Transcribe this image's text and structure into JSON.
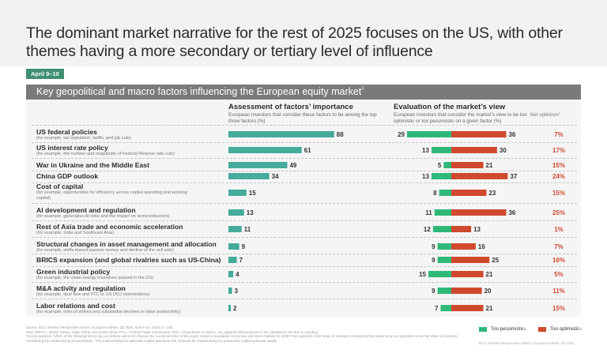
{
  "title": "The dominant market narrative for the rest of 2025 focuses on the US, with other themes having a more secondary or tertiary level of influence",
  "date_badge": "April 9–10",
  "panel_title": "Key geopolitical and macro factors influencing the European equity market",
  "panel_title_sup": "1",
  "columns": {
    "importance": {
      "heading": "Assessment of factors’ importance",
      "subheading": "European investors that consider these factors to be among the top three factors (%)"
    },
    "evaluation": {
      "heading": "Evaluation of the market’s view",
      "subheading": "European investors that consider the market’s view to be too optimistic or too pessimistic on a given factor (%)"
    },
    "net": {
      "heading": "Net optimism",
      "sup": "2"
    }
  },
  "colors": {
    "importance_bar": "#45ab9b",
    "too_pessimistic": "#2fb978",
    "too_optimistic": "#d0492f",
    "net_text": "#d0492f"
  },
  "chart_data": {
    "type": "bar",
    "title": "Key geopolitical and macro factors influencing the European equity market",
    "categories": [
      "US federal policies",
      "US interest rate policy",
      "War in Ukraine and the Middle East",
      "China GDP outlook",
      "Cost of capital",
      "AI development and regulation",
      "Rest of Asia trade and economic acceleration",
      "Structural changes in asset management and allocation",
      "BRICS expansion (and global rivalries such as US-China)",
      "Green industrial policy",
      "M&A activity and regulation",
      "Labor relations and cost"
    ],
    "category_descriptions": [
      "(for example, tax legislation, tariffs, and job cuts)",
      "(for example, the number and magnitude of Federal Reserve rate cuts)",
      "",
      "",
      "(for example, opportunities for efficiency across capital spending and working capital)",
      "(for example, generative AI risks and the impact on semiconductors)",
      "(for example, India and Southeast Asia)",
      "(for example, shifts toward passive money and decline of the sell side)",
      "",
      "(for example, the clean energy incentives passed in the US)",
      "(for example, deal flow and FTC or US DOJ interventions)",
      "(for example, risks of strikes and substantial declines in labor productivity)"
    ],
    "series": [
      {
        "name": "Top-three importance (%)",
        "values": [
          88,
          61,
          49,
          34,
          15,
          13,
          11,
          9,
          7,
          4,
          3,
          2
        ]
      },
      {
        "name": "Too pessimistic",
        "values": [
          29,
          13,
          5,
          13,
          8,
          11,
          12,
          9,
          9,
          15,
          9,
          7
        ]
      },
      {
        "name": "Too optimistic",
        "values": [
          36,
          30,
          21,
          37,
          23,
          36,
          13,
          16,
          25,
          21,
          20,
          21
        ]
      },
      {
        "name": "Net optimism",
        "values": [
          "7%",
          "17%",
          "15%",
          "24%",
          "15%",
          "25%",
          "1%",
          "7%",
          "16%",
          "5%",
          "11%",
          "15%"
        ]
      }
    ],
    "xlabel": "",
    "ylabel": "",
    "legend": [
      "Too pessimistic",
      "Too optimistic"
    ],
    "legend_position": "bottom-right"
  },
  "legend": {
    "pessimistic": "Too pessimistic",
    "optimistic": "Too optimistic",
    "sup": "3"
  },
  "footnotes": [
    "Source: BCG Investor Perspectives Series, European Edition, Q2 2025, April 9–10, 2025, n = 154.",
    "Note: BRICS = Brazil, Russia, India, China, and South Africa; FTC = Federal Trade Commission; DOJ = Department of Justice. Any apparent discrepancies in the calculations are due to rounding.",
    "¹Survey question: Which of the following factors do you believe will most influence the overall direction of the equity market in European economies and stock markets for 2025? ²Net optimism is the share of investors considering the market to be too optimistic minus the share of investors considering the market being too pessimistic. ³The market being too optimistic implies downside risk, whereas the market being too pessimistic implies potential upside."
  ],
  "source_line": "BCG Investor Perspectives Series | European Edition, Q2 2025"
}
